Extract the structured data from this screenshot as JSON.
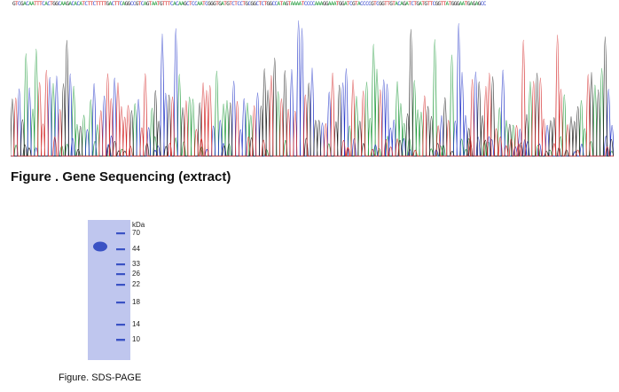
{
  "figure1": {
    "caption": "Figure . Gene Sequencing (extract)",
    "sequence": "GTCGACAATTTCACTGGCAAGACACATCTTCTTTTGACTTCAGGCCGTCAGTAATGTTTCACAAGCTCCAATCGGGTGATGTCTCCTGCGGCTCTGGCCATAGTAAAATCCCCAAAGGAAATGGATCGTACCCCGTCGGTTGTACAGATCTGATGTTCGGTTATGGGAATGAGAGCC",
    "base_colors": {
      "A": "#1f9a3a",
      "C": "#2436c8",
      "G": "#222222",
      "T": "#d42a2a"
    }
  },
  "figure2": {
    "caption": "Figure. SDS-PAGE",
    "unit_label": "kDa",
    "markers": [
      "70",
      "44",
      "33",
      "26",
      "22",
      "18",
      "14",
      "10"
    ],
    "gel_color": "#bfc6ee",
    "band_color": "#3a52c4"
  }
}
